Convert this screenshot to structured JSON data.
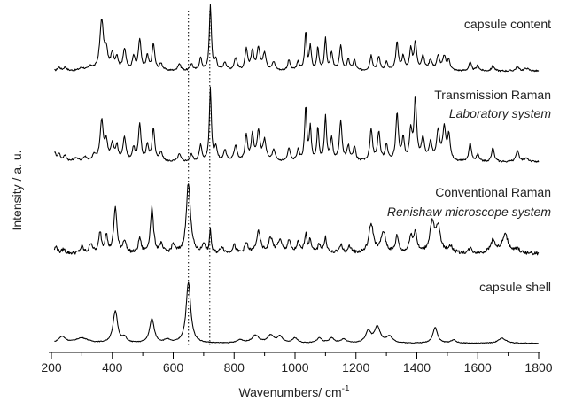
{
  "chart_data": {
    "type": "line",
    "xlabel": "Wavenumbers/ cm",
    "xlabel_superscript": "-1",
    "ylabel": "Intensity / a. u.",
    "xlim": [
      200,
      1800
    ],
    "x_ticks": [
      "200",
      "400",
      "600",
      "800",
      "1000",
      "1200",
      "1400",
      "1600",
      "1800"
    ],
    "y_ticks_shown": false,
    "reference_lines_x": [
      650,
      720
    ],
    "series": [
      {
        "key": "content",
        "labels": [
          "capsule content"
        ],
        "baseline": 0.06,
        "noise": 0.012,
        "peaks": [
          [
            225,
            0.05,
            6
          ],
          [
            245,
            0.05,
            6
          ],
          [
            300,
            0.04,
            10
          ],
          [
            330,
            0.05,
            8
          ],
          [
            365,
            0.72,
            7
          ],
          [
            380,
            0.25,
            6
          ],
          [
            400,
            0.22,
            6
          ],
          [
            415,
            0.18,
            5
          ],
          [
            440,
            0.3,
            6
          ],
          [
            470,
            0.2,
            5
          ],
          [
            490,
            0.45,
            5
          ],
          [
            515,
            0.2,
            5
          ],
          [
            535,
            0.38,
            5
          ],
          [
            560,
            0.1,
            6
          ],
          [
            620,
            0.1,
            6
          ],
          [
            660,
            0.1,
            5
          ],
          [
            690,
            0.18,
            5
          ],
          [
            722,
            0.95,
            4
          ],
          [
            740,
            0.15,
            5
          ],
          [
            770,
            0.12,
            6
          ],
          [
            805,
            0.18,
            6
          ],
          [
            840,
            0.3,
            5
          ],
          [
            860,
            0.28,
            5
          ],
          [
            880,
            0.32,
            6
          ],
          [
            900,
            0.25,
            6
          ],
          [
            930,
            0.12,
            6
          ],
          [
            980,
            0.15,
            5
          ],
          [
            1010,
            0.12,
            5
          ],
          [
            1035,
            0.55,
            4
          ],
          [
            1050,
            0.35,
            4
          ],
          [
            1075,
            0.33,
            4
          ],
          [
            1100,
            0.45,
            4
          ],
          [
            1120,
            0.25,
            5
          ],
          [
            1150,
            0.35,
            5
          ],
          [
            1175,
            0.15,
            5
          ],
          [
            1195,
            0.15,
            5
          ],
          [
            1250,
            0.22,
            5
          ],
          [
            1275,
            0.2,
            5
          ],
          [
            1300,
            0.12,
            5
          ],
          [
            1335,
            0.4,
            5
          ],
          [
            1355,
            0.2,
            5
          ],
          [
            1380,
            0.3,
            5
          ],
          [
            1395,
            0.4,
            5
          ],
          [
            1420,
            0.2,
            6
          ],
          [
            1445,
            0.15,
            6
          ],
          [
            1470,
            0.2,
            6
          ],
          [
            1490,
            0.2,
            6
          ],
          [
            1505,
            0.15,
            5
          ],
          [
            1575,
            0.12,
            5
          ],
          [
            1600,
            0.08,
            5
          ],
          [
            1650,
            0.08,
            5
          ],
          [
            1730,
            0.06,
            6
          ],
          [
            1760,
            0.04,
            8
          ]
        ]
      },
      {
        "key": "transmission",
        "labels": [
          "Transmission Raman",
          "Laboratory system"
        ],
        "baseline": 0.06,
        "noise": 0.012,
        "peaks": [
          [
            210,
            0.12,
            6
          ],
          [
            225,
            0.1,
            6
          ],
          [
            245,
            0.08,
            6
          ],
          [
            280,
            0.05,
            8
          ],
          [
            310,
            0.06,
            8
          ],
          [
            340,
            0.08,
            7
          ],
          [
            365,
            0.55,
            6
          ],
          [
            380,
            0.25,
            6
          ],
          [
            400,
            0.22,
            6
          ],
          [
            415,
            0.2,
            5
          ],
          [
            440,
            0.32,
            6
          ],
          [
            470,
            0.18,
            5
          ],
          [
            490,
            0.5,
            5
          ],
          [
            515,
            0.22,
            5
          ],
          [
            535,
            0.45,
            5
          ],
          [
            560,
            0.12,
            6
          ],
          [
            620,
            0.1,
            6
          ],
          [
            660,
            0.1,
            5
          ],
          [
            690,
            0.22,
            5
          ],
          [
            722,
            1.0,
            4
          ],
          [
            740,
            0.2,
            5
          ],
          [
            770,
            0.15,
            6
          ],
          [
            805,
            0.22,
            6
          ],
          [
            840,
            0.35,
            5
          ],
          [
            860,
            0.35,
            5
          ],
          [
            880,
            0.4,
            6
          ],
          [
            900,
            0.28,
            6
          ],
          [
            930,
            0.15,
            6
          ],
          [
            980,
            0.18,
            5
          ],
          [
            1010,
            0.15,
            5
          ],
          [
            1035,
            0.75,
            4
          ],
          [
            1050,
            0.45,
            4
          ],
          [
            1075,
            0.45,
            4
          ],
          [
            1100,
            0.6,
            4
          ],
          [
            1120,
            0.3,
            5
          ],
          [
            1150,
            0.55,
            5
          ],
          [
            1175,
            0.2,
            5
          ],
          [
            1195,
            0.2,
            5
          ],
          [
            1250,
            0.45,
            5
          ],
          [
            1275,
            0.4,
            5
          ],
          [
            1300,
            0.22,
            5
          ],
          [
            1335,
            0.65,
            5
          ],
          [
            1355,
            0.3,
            5
          ],
          [
            1380,
            0.4,
            5
          ],
          [
            1395,
            0.85,
            5
          ],
          [
            1420,
            0.3,
            6
          ],
          [
            1445,
            0.25,
            6
          ],
          [
            1470,
            0.4,
            6
          ],
          [
            1490,
            0.45,
            6
          ],
          [
            1505,
            0.35,
            5
          ],
          [
            1575,
            0.25,
            5
          ],
          [
            1600,
            0.1,
            5
          ],
          [
            1650,
            0.2,
            5
          ],
          [
            1730,
            0.15,
            6
          ],
          [
            1760,
            0.05,
            8
          ]
        ]
      },
      {
        "key": "conventional",
        "labels": [
          "Conventional Raman",
          "Renishaw microscope system"
        ],
        "baseline": 0.08,
        "noise": 0.02,
        "peaks": [
          [
            215,
            0.08,
            6
          ],
          [
            240,
            0.05,
            6
          ],
          [
            300,
            0.08,
            6
          ],
          [
            330,
            0.12,
            6
          ],
          [
            360,
            0.25,
            5
          ],
          [
            380,
            0.22,
            5
          ],
          [
            410,
            0.55,
            6
          ],
          [
            440,
            0.15,
            6
          ],
          [
            490,
            0.18,
            5
          ],
          [
            530,
            0.55,
            6
          ],
          [
            560,
            0.1,
            6
          ],
          [
            600,
            0.1,
            6
          ],
          [
            650,
            0.85,
            8
          ],
          [
            700,
            0.12,
            5
          ],
          [
            722,
            0.3,
            3
          ],
          [
            760,
            0.08,
            6
          ],
          [
            800,
            0.1,
            6
          ],
          [
            840,
            0.12,
            6
          ],
          [
            880,
            0.25,
            8
          ],
          [
            920,
            0.18,
            8
          ],
          [
            950,
            0.15,
            8
          ],
          [
            980,
            0.15,
            6
          ],
          [
            1010,
            0.12,
            6
          ],
          [
            1035,
            0.22,
            5
          ],
          [
            1050,
            0.15,
            5
          ],
          [
            1080,
            0.1,
            6
          ],
          [
            1100,
            0.18,
            5
          ],
          [
            1150,
            0.1,
            6
          ],
          [
            1180,
            0.08,
            6
          ],
          [
            1250,
            0.35,
            9
          ],
          [
            1290,
            0.25,
            9
          ],
          [
            1335,
            0.2,
            6
          ],
          [
            1380,
            0.2,
            6
          ],
          [
            1395,
            0.25,
            6
          ],
          [
            1450,
            0.35,
            9
          ],
          [
            1470,
            0.3,
            9
          ],
          [
            1510,
            0.08,
            8
          ],
          [
            1575,
            0.06,
            6
          ],
          [
            1650,
            0.15,
            10
          ],
          [
            1690,
            0.22,
            12
          ],
          [
            1730,
            0.05,
            8
          ]
        ]
      },
      {
        "key": "shell",
        "labels": [
          "capsule shell"
        ],
        "baseline": 0.03,
        "noise": 0.006,
        "peaks": [
          [
            235,
            0.1,
            14
          ],
          [
            300,
            0.08,
            25
          ],
          [
            410,
            0.5,
            9
          ],
          [
            440,
            0.08,
            8
          ],
          [
            530,
            0.38,
            9
          ],
          [
            580,
            0.05,
            10
          ],
          [
            650,
            0.95,
            9
          ],
          [
            820,
            0.05,
            12
          ],
          [
            870,
            0.12,
            14
          ],
          [
            920,
            0.12,
            12
          ],
          [
            950,
            0.1,
            10
          ],
          [
            1000,
            0.08,
            10
          ],
          [
            1080,
            0.08,
            10
          ],
          [
            1120,
            0.08,
            10
          ],
          [
            1160,
            0.06,
            10
          ],
          [
            1240,
            0.18,
            10
          ],
          [
            1270,
            0.25,
            12
          ],
          [
            1310,
            0.1,
            12
          ],
          [
            1460,
            0.25,
            9
          ],
          [
            1520,
            0.05,
            10
          ],
          [
            1680,
            0.08,
            15
          ]
        ]
      }
    ]
  }
}
